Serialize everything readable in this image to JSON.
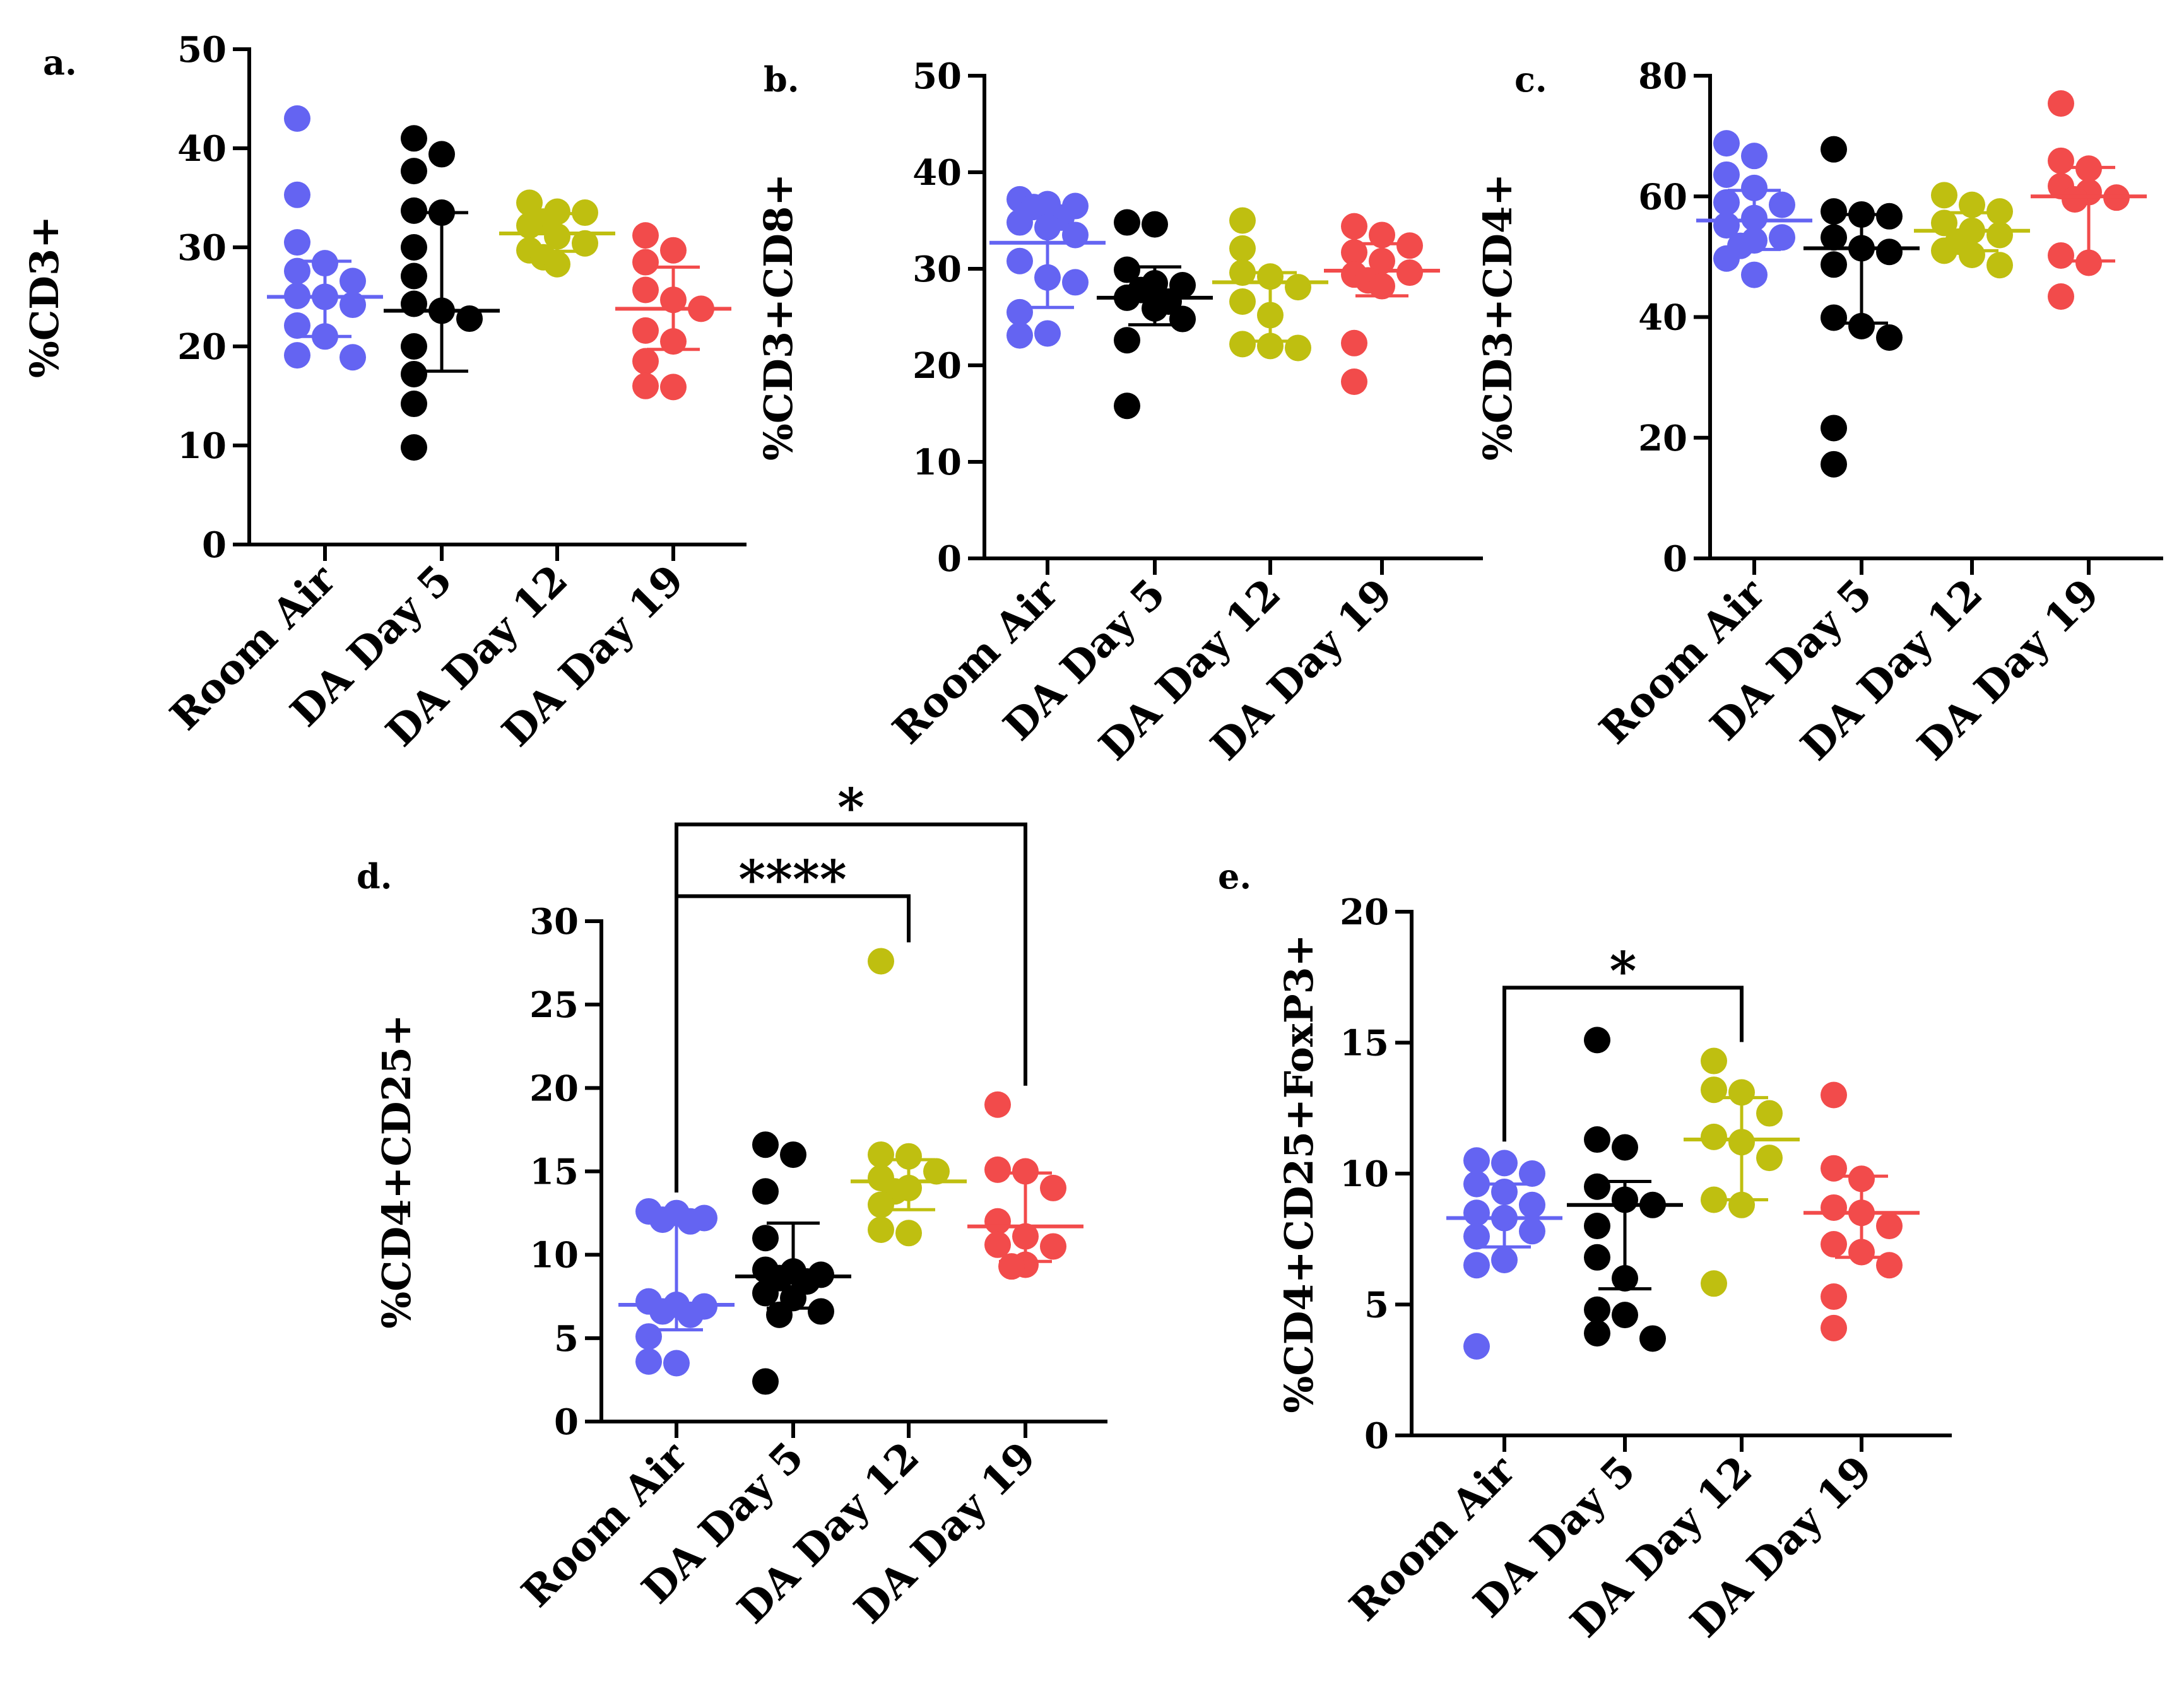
{
  "colors": {
    "room_air": "#6464f2",
    "day5": "#000000",
    "day12": "#bfbf10",
    "day19": "#f24b4b"
  },
  "chart_data": [
    {
      "id": "a",
      "type": "scatter",
      "letter": "a.",
      "ylabel": "%CD3+",
      "ylim": [
        0,
        50
      ],
      "yticks": [
        "0",
        "10",
        "20",
        "30",
        "40",
        "50"
      ],
      "categories": [
        "Room Air",
        "DA Day 5",
        "DA Day 12",
        "DA Day 19"
      ],
      "series": [
        {
          "name": "Room Air",
          "values": [
            43,
            35.3,
            30.5,
            28.4,
            27.6,
            26.6,
            25.1,
            25.0,
            24.2,
            22.1,
            21.0,
            19.1,
            18.9
          ],
          "median": 25.0,
          "q1": 21.0,
          "q3": 28.6
        },
        {
          "name": "DA Day 5",
          "values": [
            41,
            39.4,
            37.7,
            33.7,
            33.5,
            30,
            27.1,
            24.3,
            23.6,
            22.8,
            20,
            17.2,
            14.2,
            9.8
          ],
          "median": 23.6,
          "q1": 17.5,
          "q3": 33.5
        },
        {
          "name": "DA Day 12",
          "values": [
            34.5,
            33.6,
            33.5,
            32.6,
            32.2,
            31.1,
            30.4,
            29.7,
            29.0,
            28.3
          ],
          "median": 31.4,
          "q1": 29.6,
          "q3": 33.4
        },
        {
          "name": "DA Day 19",
          "values": [
            31.2,
            29.7,
            28.5,
            25.7,
            24.7,
            23.8,
            21.6,
            20.5,
            18.5,
            16.0,
            15.9
          ],
          "median": 23.8,
          "q1": 19.7,
          "q3": 28.0
        }
      ],
      "annotations": []
    },
    {
      "id": "b",
      "type": "scatter",
      "letter": "b.",
      "ylabel": "%CD3+CD8+",
      "ylim": [
        0,
        50
      ],
      "yticks": [
        "0",
        "10",
        "20",
        "30",
        "40",
        "50"
      ],
      "categories": [
        "Room Air",
        "DA Day 5",
        "DA Day 12",
        "DA Day 19"
      ],
      "series": [
        {
          "name": "Room Air",
          "values": [
            37.2,
            36.7,
            36.5,
            36.4,
            35.3,
            34.8,
            34.3,
            33.5,
            30.8,
            29.1,
            28.6,
            25.5,
            23.3,
            23.1
          ],
          "median": 32.7,
          "q1": 26.0,
          "q3": 35.8
        },
        {
          "name": "DA Day 5",
          "values": [
            34.8,
            34.6,
            29.9,
            28.5,
            28.3,
            27.8,
            27.0,
            26.6,
            25.9,
            24.8,
            22.6,
            15.8
          ],
          "median": 27.0,
          "q1": 24.2,
          "q3": 30.2
        },
        {
          "name": "DA Day 12",
          "values": [
            35.0,
            32.1,
            29.6,
            29.2,
            28.1,
            26.6,
            25.2,
            22.2,
            22.0,
            21.8
          ],
          "median": 28.6,
          "q1": 22.5,
          "q3": 29.6
        },
        {
          "name": "DA Day 19",
          "values": [
            34.4,
            33.5,
            32.4,
            31.7,
            30.8,
            29.6,
            29.4,
            28.8,
            28.2,
            22.3,
            18.3
          ],
          "median": 29.8,
          "q1": 27.2,
          "q3": 32.6
        }
      ],
      "annotations": []
    },
    {
      "id": "c",
      "type": "scatter",
      "letter": "c.",
      "ylabel": "%CD3+CD4+",
      "ylim": [
        0,
        80
      ],
      "yticks": [
        "0",
        "20",
        "40",
        "60",
        "80"
      ],
      "categories": [
        "Room Air",
        "DA Day 5",
        "DA Day 12",
        "DA Day 19"
      ],
      "series": [
        {
          "name": "Room Air",
          "values": [
            68.8,
            66.7,
            63.6,
            61.4,
            59.0,
            58.6,
            56.4,
            55.2,
            53.2,
            52.7,
            51.8,
            49.7,
            47.0
          ],
          "median": 56.0,
          "q1": 51.2,
          "q3": 61.0
        },
        {
          "name": "DA Day 5",
          "values": [
            67.8,
            57.5,
            57.0,
            56.7,
            53.2,
            51.4,
            50.8,
            48.7,
            39.9,
            38.5,
            36.6,
            21.6,
            15.6
          ],
          "median": 51.4,
          "q1": 39.0,
          "q3": 57.0
        },
        {
          "name": "DA Day 12",
          "values": [
            60.2,
            58.6,
            57.5,
            55.6,
            54.3,
            53.6,
            52.5,
            51.0,
            50.3,
            48.6
          ],
          "median": 54.3,
          "q1": 51.0,
          "q3": 57.3
        },
        {
          "name": "DA Day 19",
          "values": [
            75.4,
            65.9,
            64.6,
            61.7,
            60.7,
            59.8,
            59.5,
            50.2,
            49.0,
            43.4
          ],
          "median": 60.0,
          "q1": 49.3,
          "q3": 64.8
        }
      ],
      "annotations": []
    },
    {
      "id": "d",
      "type": "scatter",
      "letter": "d.",
      "ylabel": "%CD4+CD25+",
      "ylim": [
        0,
        30
      ],
      "yticks": [
        "0",
        "5",
        "10",
        "15",
        "20",
        "25",
        "30"
      ],
      "categories": [
        "Room Air",
        "DA Day 5",
        "DA Day 12",
        "DA Day 19"
      ],
      "series": [
        {
          "name": "Room Air",
          "values": [
            12.6,
            12.5,
            12.2,
            12.1,
            12.0,
            7.2,
            7.0,
            6.9,
            6.6,
            6.4,
            5.1,
            3.6,
            3.5
          ],
          "median": 7.0,
          "q1": 5.5,
          "q3": 12.0
        },
        {
          "name": "DA Day 5",
          "values": [
            16.6,
            16.0,
            13.8,
            11.0,
            9.1,
            9.0,
            8.8,
            8.6,
            8.4,
            7.7,
            7.4,
            6.6,
            6.4,
            2.4
          ],
          "median": 8.7,
          "q1": 6.8,
          "q3": 11.9
        },
        {
          "name": "DA Day 12",
          "values": [
            27.6,
            16.0,
            15.9,
            15.0,
            14.6,
            14.0,
            13.8,
            13.0,
            11.5,
            11.3
          ],
          "median": 14.4,
          "q1": 12.7,
          "q3": 15.7
        },
        {
          "name": "DA Day 19",
          "values": [
            19.0,
            15.1,
            15.0,
            14.0,
            12.0,
            11.1,
            10.6,
            10.5,
            9.4,
            9.3
          ],
          "median": 11.7,
          "q1": 9.6,
          "q3": 14.9
        }
      ],
      "annotations": [
        {
          "from": "Room Air",
          "to": "DA Day 12",
          "label": "****",
          "bar_y": 31.5,
          "level": 1
        },
        {
          "from": "Room Air",
          "to": "DA Day 19",
          "label": "*",
          "bar_y": 35.8,
          "level": 2
        }
      ]
    },
    {
      "id": "e",
      "type": "scatter",
      "letter": "e.",
      "ylabel": "%CD4+CD25+FoxP3+",
      "ylim": [
        0,
        20
      ],
      "yticks": [
        "0",
        "5",
        "10",
        "15",
        "20"
      ],
      "categories": [
        "Room Air",
        "DA Day 5",
        "DA Day 12",
        "DA Day 19"
      ],
      "series": [
        {
          "name": "Room Air",
          "values": [
            10.5,
            10.4,
            10.0,
            9.6,
            9.3,
            8.8,
            8.5,
            8.3,
            7.8,
            7.6,
            6.7,
            6.5,
            3.4
          ],
          "median": 8.3,
          "q1": 7.2,
          "q3": 9.6
        },
        {
          "name": "DA Day 5",
          "values": [
            15.1,
            11.3,
            11.0,
            9.5,
            9.0,
            8.8,
            8.0,
            6.8,
            6.0,
            4.8,
            4.6,
            3.9,
            3.7
          ],
          "median": 8.8,
          "q1": 5.6,
          "q3": 9.7
        },
        {
          "name": "DA Day 12",
          "values": [
            14.3,
            13.2,
            13.1,
            12.3,
            11.4,
            11.2,
            10.6,
            9.0,
            8.8,
            5.8
          ],
          "median": 11.3,
          "q1": 9.0,
          "q3": 12.9
        },
        {
          "name": "DA Day 19",
          "values": [
            13.0,
            10.2,
            9.8,
            8.7,
            8.5,
            8.0,
            7.3,
            7.0,
            6.5,
            5.3,
            4.1
          ],
          "median": 8.5,
          "q1": 6.8,
          "q3": 9.9
        }
      ],
      "annotations": [
        {
          "from": "Room Air",
          "to": "DA Day 12",
          "label": "*",
          "bar_y": 17.1,
          "level": 1
        }
      ]
    }
  ]
}
